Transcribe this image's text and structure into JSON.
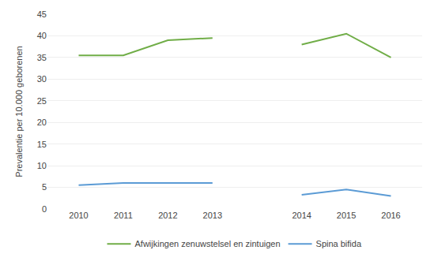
{
  "chart_data": {
    "type": "line",
    "categories": [
      "2010",
      "2011",
      "2012",
      "2013",
      null,
      "2014",
      "2015",
      "2016"
    ],
    "series": [
      {
        "name": "Afwijkingen zenuwstelsel en zintuigen",
        "color": "#70AD47",
        "values": [
          35.5,
          35.5,
          39.0,
          39.5,
          null,
          38.0,
          40.5,
          35.0
        ]
      },
      {
        "name": "Spina bifida",
        "color": "#5B9BD5",
        "values": [
          5.5,
          6.0,
          6.0,
          6.0,
          null,
          3.3,
          4.5,
          3.0
        ]
      }
    ],
    "ylabel": "Prevalentie per 10.000 geborenen",
    "ylim": [
      0,
      45
    ],
    "yticks": [
      0,
      5,
      10,
      15,
      20,
      25,
      30,
      35,
      40,
      45
    ],
    "grid": true,
    "legend": "bottom"
  }
}
